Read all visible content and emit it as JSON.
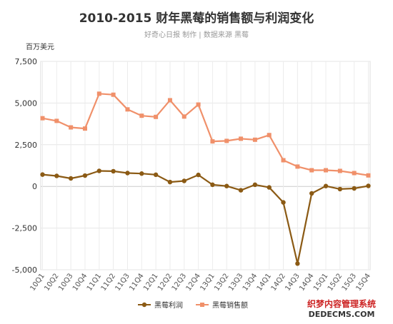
{
  "chart_data": {
    "type": "line",
    "title": "2010-2015 财年黑莓的销售额与利润变化",
    "subtitle": "好奇心日报 制作 | 数据来源 黑莓",
    "unit_label": "百万美元",
    "categories": [
      "10Q1",
      "10Q2",
      "10Q3",
      "10Q4",
      "11Q1",
      "11Q2",
      "11Q3",
      "11Q4",
      "12Q1",
      "12Q2",
      "12Q3",
      "12Q4",
      "13Q1",
      "13Q2",
      "13Q3",
      "13Q4",
      "14Q1",
      "14Q2",
      "14Q3",
      "14Q4",
      "15Q1",
      "15Q2",
      "15Q3",
      "15Q4"
    ],
    "ylim": [
      -5000,
      7500
    ],
    "yticks": [
      7500,
      5000,
      2500,
      0,
      -2500,
      -5000
    ],
    "ytick_labels": [
      "7,500",
      "5,000",
      "2,500",
      "0",
      "-2,500",
      "-5,000"
    ],
    "grid": true,
    "legend_position": "bottom",
    "series": [
      {
        "name": "黑莓利润",
        "color": "#8b5a14",
        "marker": "circle",
        "values": [
          710,
          630,
          480,
          650,
          930,
          910,
          800,
          770,
          700,
          260,
          330,
          690,
          100,
          20,
          -230,
          100,
          -60,
          -960,
          -4630,
          -420,
          20,
          -160,
          -120,
          30
        ]
      },
      {
        "name": "黑莓销售额",
        "color": "#f0906a",
        "marker": "square",
        "values": [
          4090,
          3930,
          3540,
          3470,
          5560,
          5500,
          4620,
          4240,
          4170,
          5170,
          4190,
          4910,
          2700,
          2730,
          2860,
          2800,
          3080,
          1570,
          1190,
          970,
          970,
          930,
          800,
          660
        ]
      }
    ]
  },
  "watermark": {
    "line1": "织梦内容管理系统",
    "line2": "DEDECMS.COM"
  }
}
